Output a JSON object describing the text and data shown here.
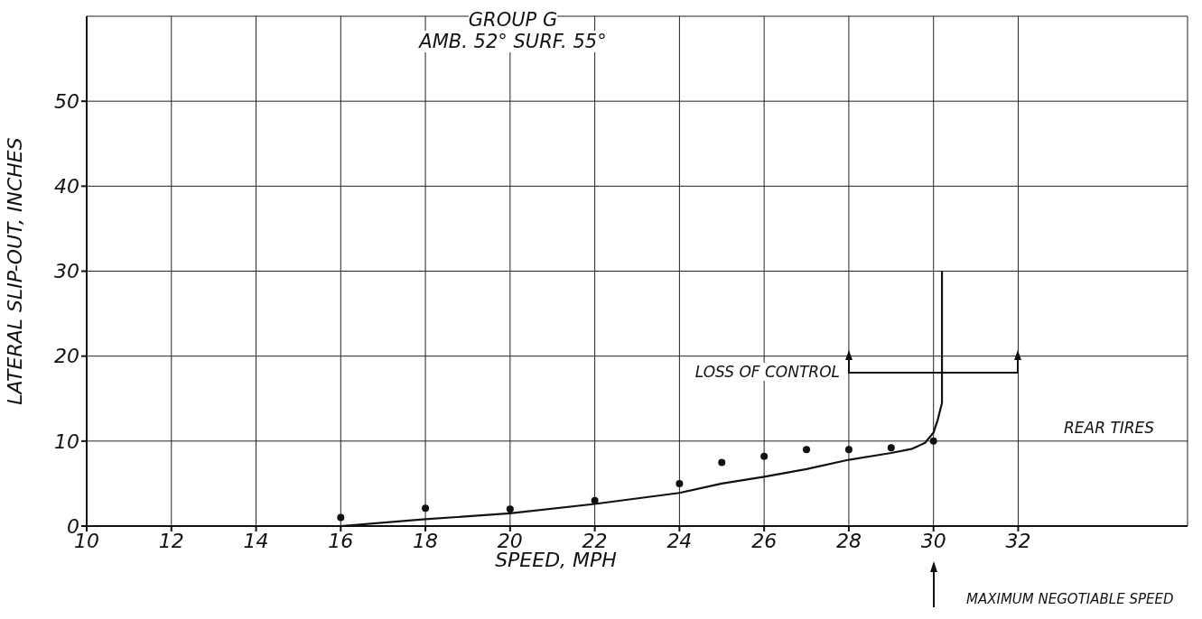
{
  "chart_data": {
    "type": "line",
    "title": "GROUP G",
    "subtitle": "AMB. 52° SURF. 55°",
    "xlabel": "SPEED, MPH",
    "ylabel": "LATERAL SLIP-OUT, INCHES",
    "xlim": [
      10,
      36
    ],
    "xticks": [
      10,
      12,
      14,
      16,
      18,
      20,
      22,
      24,
      26,
      28,
      30,
      32
    ],
    "ylim": [
      0,
      60
    ],
    "yticks": [
      0,
      10,
      20,
      30,
      40,
      50
    ],
    "grid": true,
    "series": [
      {
        "type": "scatter",
        "color": "#111111",
        "marker": "circle",
        "x": [
          16,
          18,
          20,
          22,
          24,
          25,
          26,
          27,
          28,
          29,
          30
        ],
        "values": [
          1,
          2.1,
          2,
          3,
          5,
          7.5,
          8.2,
          9,
          9,
          9.2,
          10
        ]
      },
      {
        "type": "line",
        "color": "#111111",
        "marker": "none",
        "line_style": "solid",
        "x": [
          10,
          16,
          18,
          20,
          22,
          24,
          25,
          26,
          27,
          28,
          29,
          29.5,
          29.8,
          30,
          30.1,
          30.2,
          30.2
        ],
        "values": [
          0,
          0,
          0.8,
          1.5,
          2.6,
          3.9,
          5,
          5.8,
          6.7,
          7.8,
          8.6,
          9.1,
          9.8,
          11,
          12.5,
          14.5,
          30
        ]
      }
    ],
    "annotations": [
      "LOSS OF CONTROL",
      "REAR TIRES",
      "MAXIMUM NEGOTIABLE SPEED"
    ]
  }
}
